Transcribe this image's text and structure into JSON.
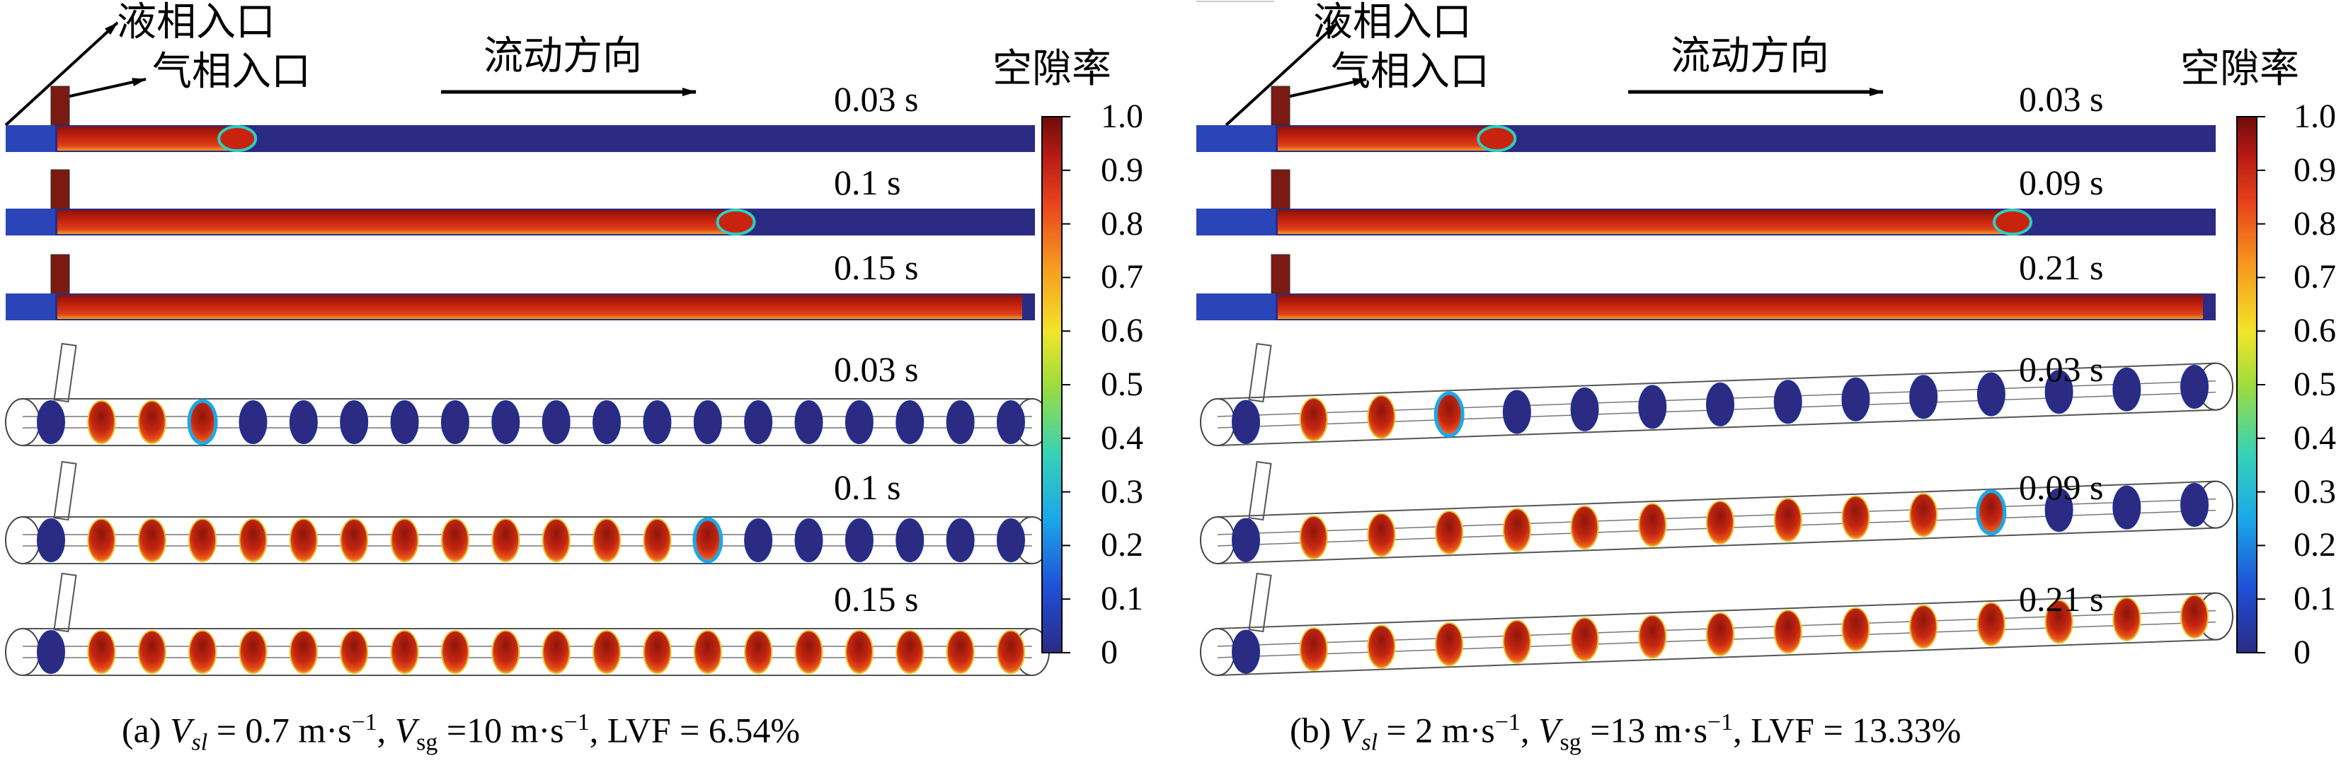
{
  "panels": [
    {
      "id": "a",
      "labels": {
        "liquid_inlet": "液相入口",
        "gas_inlet": "气相入口",
        "flow_direction": "流动方向",
        "colorbar_title": "空隙率"
      },
      "times_2d": [
        "0.03 s",
        "0.1 s",
        "0.15 s"
      ],
      "times_3d": [
        "0.03 s",
        "0.1 s",
        "0.15 s"
      ],
      "gas_front_fraction_2d": [
        0.2,
        0.71,
        1.0
      ],
      "caption": {
        "prefix": "(a) ",
        "vsl_sym": "V",
        "vsl_sub": "sl",
        "vsl_val": " = 0.7 m·s",
        "vsl_exp": "−1",
        "sep1": ", ",
        "vsg_sym": "V",
        "vsg_sub": "sg",
        "vsg_val": " =10 m·s",
        "vsg_exp": "−1",
        "sep2": ", LVF = 6.54%"
      }
    },
    {
      "id": "b",
      "labels": {
        "liquid_inlet": "液相入口",
        "gas_inlet": "气相入口",
        "flow_direction": "流动方向",
        "colorbar_title": "空隙率"
      },
      "times_2d": [
        "0.03 s",
        "0.09 s",
        "0.21 s"
      ],
      "times_3d": [
        "0.03 s",
        "0.09 s",
        "0.21 s"
      ],
      "gas_front_fraction_2d": [
        0.25,
        0.8,
        1.0
      ],
      "caption": {
        "prefix": "(b) ",
        "vsl_sym": "V",
        "vsl_sub": "sl",
        "vsl_val": " = 2 m·s",
        "vsl_exp": "−1",
        "sep1": ", ",
        "vsg_sym": "V",
        "vsg_sub": "sg",
        "vsg_val": " =13 m·s",
        "vsg_exp": "−1",
        "sep2": ", LVF = 13.33%"
      }
    }
  ],
  "colorbar_ticks": [
    "1.0",
    "0.9",
    "0.8",
    "0.7",
    "0.6",
    "0.5",
    "0.4",
    "0.3",
    "0.2",
    "0.1",
    "0"
  ],
  "colormap": [
    "#2b2b84",
    "#1f4fd6",
    "#1aa8e8",
    "#35d2b8",
    "#9fdc3c",
    "#f2e42a",
    "#f79a1e",
    "#e8421c",
    "#b51a14",
    "#6e0d0a"
  ]
}
